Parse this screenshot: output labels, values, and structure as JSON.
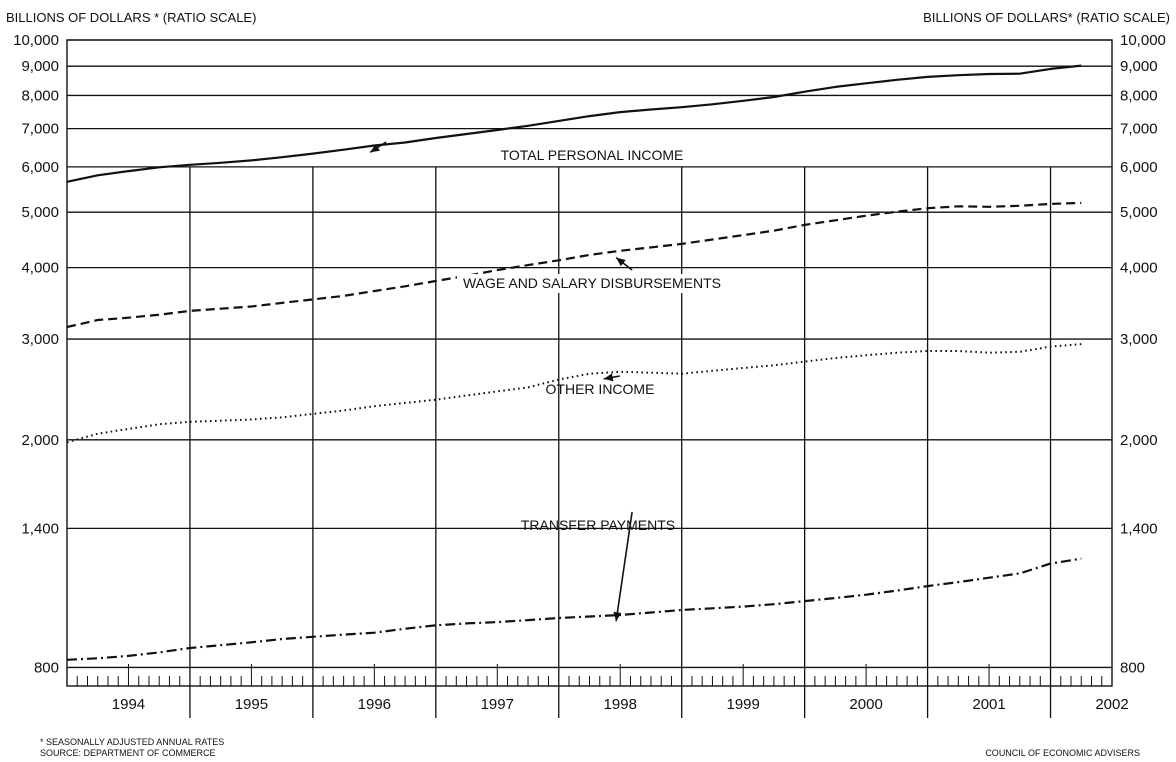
{
  "header": {
    "left_scale_label": "BILLIONS OF DOLLARS * (RATIO SCALE)",
    "right_scale_label": "BILLIONS OF DOLLARS* (RATIO SCALE)"
  },
  "footer": {
    "note_line1": "* SEASONALLY ADJUSTED ANNUAL RATES",
    "note_line2": "SOURCE: DEPARTMENT OF COMMERCE",
    "credit": "COUNCIL OF ECONOMIC ADVISERS"
  },
  "chart_data": {
    "type": "line",
    "title": "",
    "ylabel": "BILLIONS OF DOLLARS (RATIO SCALE)",
    "yscale": "log",
    "ylim": [
      650,
      10000
    ],
    "xlim": [
      1994.0,
      2002.5
    ],
    "grid": true,
    "y_ticks": [
      10000,
      9000,
      8000,
      7000,
      6000,
      5000,
      4000,
      3000,
      2000,
      1400,
      800
    ],
    "y_tick_labels": [
      "10,000",
      "9,000",
      "8,000",
      "7,000",
      "6,000",
      "5,000",
      "4,000",
      "3,000",
      "2,000",
      "1,400",
      "800"
    ],
    "x_tick_labels": [
      "1994",
      "1995",
      "1996",
      "1997",
      "1998",
      "1999",
      "2000",
      "2001",
      "2002"
    ],
    "series": [
      {
        "name": "TOTAL PERSONAL INCOME",
        "style": "solid",
        "x": [
          1994.0,
          1994.25,
          1994.5,
          1994.75,
          1995.0,
          1995.25,
          1995.5,
          1995.75,
          1996.0,
          1996.25,
          1996.5,
          1996.75,
          1997.0,
          1997.25,
          1997.5,
          1997.75,
          1998.0,
          1998.25,
          1998.5,
          1998.75,
          1999.0,
          1999.25,
          1999.5,
          1999.75,
          2000.0,
          2000.25,
          2000.5,
          2000.75,
          2001.0,
          2001.25,
          2001.5,
          2001.75,
          2002.0,
          2002.25
        ],
        "values": [
          5650,
          5800,
          5900,
          5990,
          6050,
          6100,
          6160,
          6240,
          6330,
          6430,
          6540,
          6620,
          6740,
          6850,
          6960,
          7080,
          7220,
          7360,
          7480,
          7560,
          7630,
          7720,
          7830,
          7950,
          8120,
          8280,
          8400,
          8520,
          8620,
          8680,
          8720,
          8730,
          8900,
          9020
        ]
      },
      {
        "name": "WAGE AND SALARY DISBURSEMENTS",
        "style": "dashed",
        "x": [
          1994.0,
          1994.25,
          1994.5,
          1994.75,
          1995.0,
          1995.25,
          1995.5,
          1995.75,
          1996.0,
          1996.25,
          1996.5,
          1996.75,
          1997.0,
          1997.25,
          1997.5,
          1997.75,
          1998.0,
          1998.25,
          1998.5,
          1998.75,
          1999.0,
          1999.25,
          1999.5,
          1999.75,
          2000.0,
          2000.25,
          2000.5,
          2000.75,
          2001.0,
          2001.25,
          2001.5,
          2001.75,
          2002.0,
          2002.25
        ],
        "values": [
          3150,
          3240,
          3270,
          3310,
          3360,
          3390,
          3420,
          3470,
          3520,
          3570,
          3640,
          3710,
          3790,
          3870,
          3960,
          4040,
          4120,
          4210,
          4280,
          4340,
          4400,
          4480,
          4560,
          4640,
          4750,
          4840,
          4930,
          5010,
          5080,
          5120,
          5110,
          5130,
          5170,
          5190
        ]
      },
      {
        "name": "OTHER INCOME",
        "style": "dotted",
        "x": [
          1994.0,
          1994.25,
          1994.5,
          1994.75,
          1995.0,
          1995.25,
          1995.5,
          1995.75,
          1996.0,
          1996.25,
          1996.5,
          1996.75,
          1997.0,
          1997.25,
          1997.5,
          1997.75,
          1998.0,
          1998.25,
          1998.5,
          1998.75,
          1999.0,
          1999.25,
          1999.5,
          1999.75,
          2000.0,
          2000.25,
          2000.5,
          2000.75,
          2001.0,
          2001.25,
          2001.5,
          2001.75,
          2002.0,
          2002.25
        ],
        "values": [
          1980,
          2050,
          2090,
          2130,
          2150,
          2160,
          2170,
          2190,
          2220,
          2250,
          2290,
          2320,
          2350,
          2390,
          2430,
          2470,
          2550,
          2610,
          2630,
          2620,
          2610,
          2640,
          2670,
          2700,
          2740,
          2780,
          2810,
          2840,
          2860,
          2860,
          2840,
          2850,
          2910,
          2940
        ]
      },
      {
        "name": "TRANSFER PAYMENTS",
        "style": "dash-dot",
        "x": [
          1994.0,
          1994.25,
          1994.5,
          1994.75,
          1995.0,
          1995.25,
          1995.5,
          1995.75,
          1996.0,
          1996.25,
          1996.5,
          1996.75,
          1997.0,
          1997.25,
          1997.5,
          1997.75,
          1998.0,
          1998.25,
          1998.5,
          1998.75,
          1999.0,
          1999.25,
          1999.5,
          1999.75,
          2000.0,
          2000.25,
          2000.5,
          2000.75,
          2001.0,
          2001.25,
          2001.5,
          2001.75,
          2002.0,
          2002.25
        ],
        "values": [
          825,
          830,
          838,
          850,
          865,
          875,
          885,
          897,
          905,
          913,
          920,
          935,
          948,
          955,
          960,
          968,
          976,
          982,
          988,
          998,
          1008,
          1015,
          1022,
          1032,
          1045,
          1058,
          1072,
          1090,
          1110,
          1128,
          1148,
          1168,
          1215,
          1240
        ]
      }
    ],
    "annotations": [
      {
        "text": "TOTAL PERSONAL INCOME",
        "series": 0
      },
      {
        "text": "WAGE AND SALARY DISBURSEMENTS",
        "series": 1
      },
      {
        "text": "OTHER INCOME",
        "series": 2
      },
      {
        "text": "TRANSFER PAYMENTS",
        "series": 3
      }
    ]
  }
}
